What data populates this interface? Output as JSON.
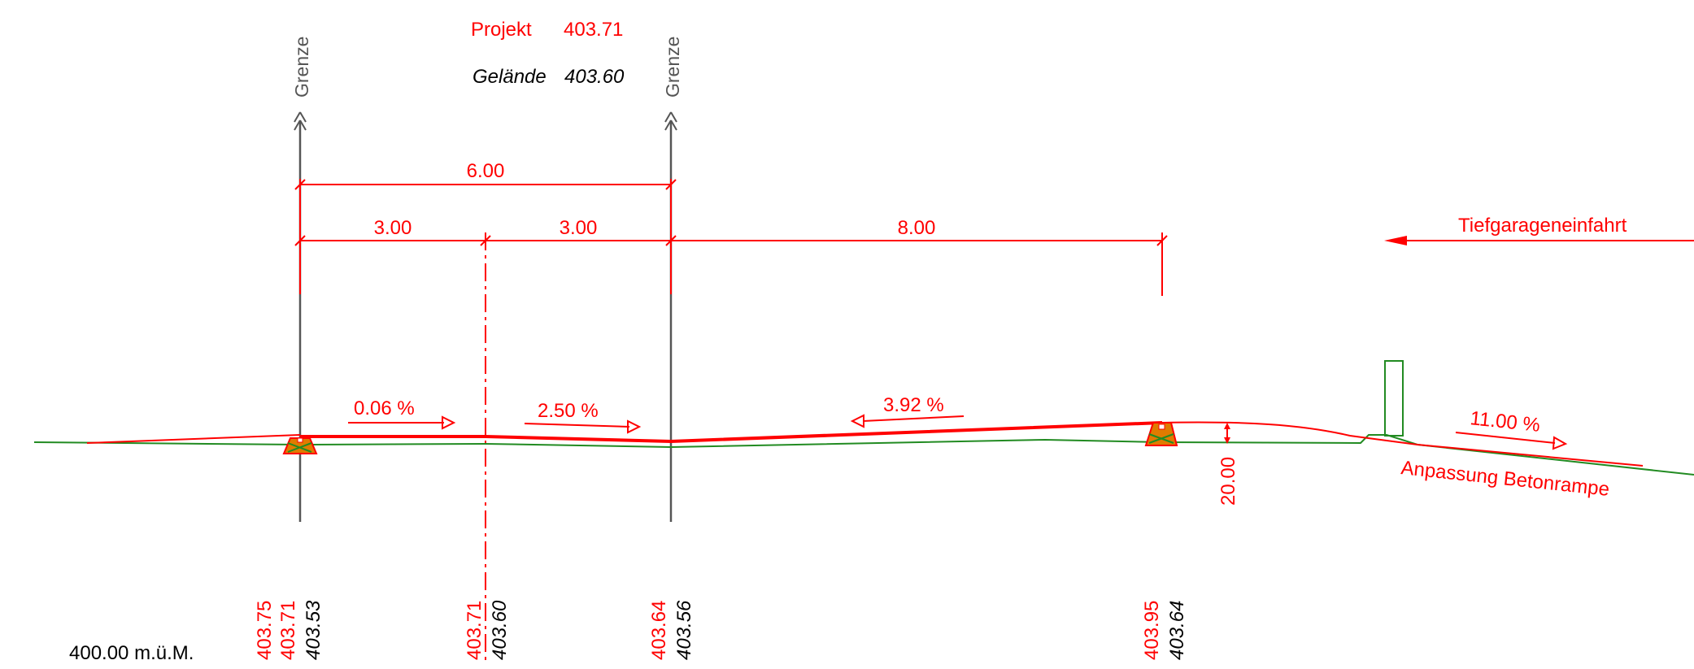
{
  "header": {
    "projekt_label": "Projekt",
    "projekt_value": "403.71",
    "gelaende_label": "Gelände",
    "gelaende_value": "403.60"
  },
  "boundaries": [
    {
      "label": "Grenze"
    },
    {
      "label": "Grenze"
    }
  ],
  "dimensions": {
    "total": "6.00",
    "seg_left": "3.00",
    "seg_mid": "3.00",
    "seg_right": "8.00"
  },
  "slopes": {
    "s1": "0.06 %",
    "s2": "2.50 %",
    "s3": "3.92 %",
    "s4": "11.00 %"
  },
  "annotations": {
    "entrance": "Tiefgarageneinfahrt",
    "ramp": "Anpassung Betonrampe",
    "height": "20.00",
    "datum": "400.00 m.ü.M."
  },
  "stations": [
    {
      "project": [
        "403.75",
        "403.71"
      ],
      "terrain": "403.53"
    },
    {
      "project": [
        "403.71"
      ],
      "terrain": "403.60"
    },
    {
      "project": [
        "403.64"
      ],
      "terrain": "403.56"
    },
    {
      "project": [
        "403.95"
      ],
      "terrain": "403.64"
    }
  ],
  "colors": {
    "project": "#ff0000",
    "terrain": "#228B22",
    "boundary": "#555555",
    "inlet_fill": "#e07b00"
  }
}
